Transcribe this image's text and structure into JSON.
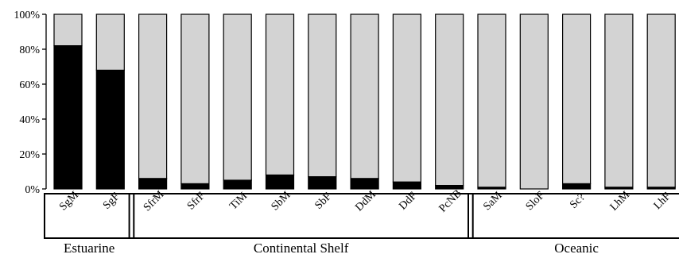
{
  "chart_data": {
    "type": "bar",
    "stacked": true,
    "percent": true,
    "categories": [
      "SgM",
      "SgF",
      "SfrM",
      "SfrF",
      "TiM",
      "SbM",
      "SbF",
      "DdM",
      "DdF",
      "PcNB",
      "SaM",
      "SloF",
      "Sc?",
      "LhM",
      "LhF"
    ],
    "series": [
      {
        "values": [
          82,
          68,
          6,
          3,
          5,
          8,
          7,
          6,
          4,
          2,
          1,
          0,
          3,
          1,
          1
        ],
        "color": "#000000"
      },
      {
        "values": [
          18,
          32,
          94,
          97,
          95,
          92,
          93,
          94,
          96,
          98,
          99,
          100,
          97,
          99,
          99
        ],
        "color": "#d3d3d3"
      }
    ],
    "ylim": [
      0,
      100
    ],
    "yticks": [
      0,
      20,
      40,
      60,
      80,
      100
    ],
    "ytick_labels": [
      "0%",
      "20%",
      "40%",
      "60%",
      "80%",
      "100%"
    ],
    "groups": [
      {
        "label": "Estuarine",
        "start": 0,
        "end": 1
      },
      {
        "label": "Continental Shelf",
        "start": 2,
        "end": 9
      },
      {
        "label": "Oceanic",
        "start": 10,
        "end": 14
      }
    ],
    "grid": false,
    "legend": "none"
  }
}
